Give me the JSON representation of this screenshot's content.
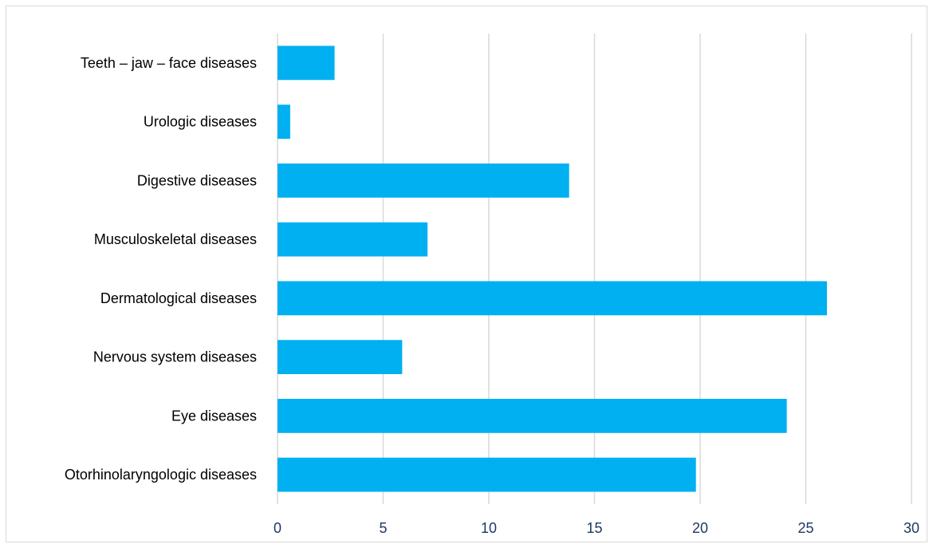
{
  "chart_data": {
    "type": "bar",
    "orientation": "horizontal",
    "categories": [
      "Teeth – jaw – face diseases",
      "Urologic diseases",
      "Digestive diseases",
      "Musculoskeletal diseases",
      "Dermatological diseases",
      "Nervous system diseases",
      "Eye diseases",
      "Otorhinolaryngologic diseases"
    ],
    "values": [
      2.7,
      0.6,
      13.8,
      7.1,
      26.0,
      5.9,
      24.1,
      19.8
    ],
    "xlim": [
      0,
      30
    ],
    "xticks": [
      "0",
      "5",
      "10",
      "15",
      "20",
      "25",
      "30"
    ],
    "grid": "vertical",
    "bar_color": "#00b0f0",
    "title": "",
    "xlabel": "",
    "ylabel": ""
  }
}
